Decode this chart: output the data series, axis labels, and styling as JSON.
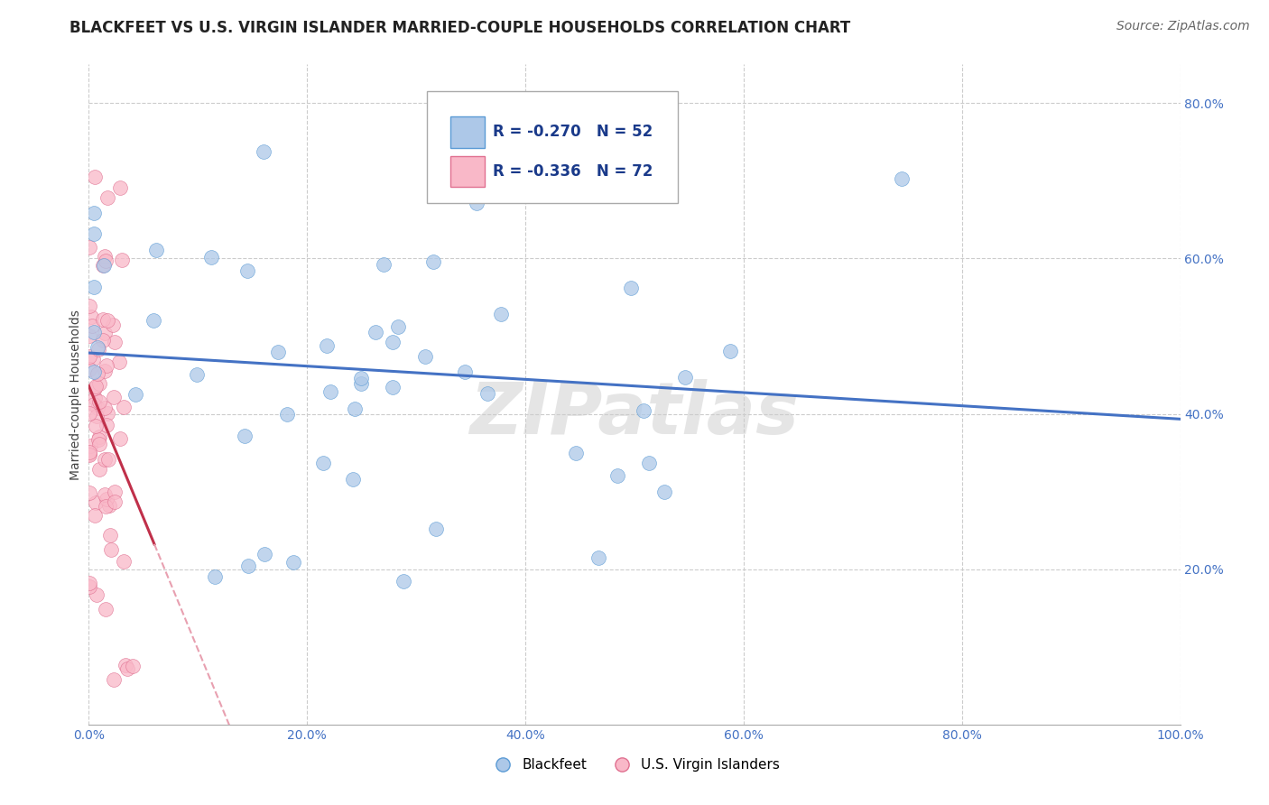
{
  "title": "BLACKFEET VS U.S. VIRGIN ISLANDER MARRIED-COUPLE HOUSEHOLDS CORRELATION CHART",
  "source": "Source: ZipAtlas.com",
  "ylabel": "Married-couple Households",
  "xlabel": "",
  "xlim": [
    0.0,
    1.0
  ],
  "ylim": [
    0.0,
    0.85
  ],
  "ytick_vals": [
    0.2,
    0.4,
    0.6,
    0.8
  ],
  "xtick_vals": [
    0.0,
    0.2,
    0.4,
    0.6,
    0.8,
    1.0
  ],
  "blue_color": "#adc8e8",
  "blue_edge_color": "#5b9bd5",
  "pink_color": "#f9b8c8",
  "pink_edge_color": "#e07090",
  "blue_line_color": "#4472C4",
  "pink_line_color": "#c0304a",
  "pink_dash_color": "#e8a0b0",
  "watermark": "ZIPatlas",
  "legend_r_blue": "-0.270",
  "legend_n_blue": "52",
  "legend_r_pink": "-0.336",
  "legend_n_pink": "72",
  "legend_label_blue": "Blackfeet",
  "legend_label_pink": "U.S. Virgin Islanders",
  "blue_R": -0.27,
  "blue_N": 52,
  "pink_R": -0.336,
  "pink_N": 72,
  "title_fontsize": 12,
  "source_fontsize": 10,
  "axis_label_fontsize": 10,
  "tick_fontsize": 10,
  "legend_fontsize": 12,
  "background_color": "#ffffff",
  "grid_color": "#cccccc"
}
